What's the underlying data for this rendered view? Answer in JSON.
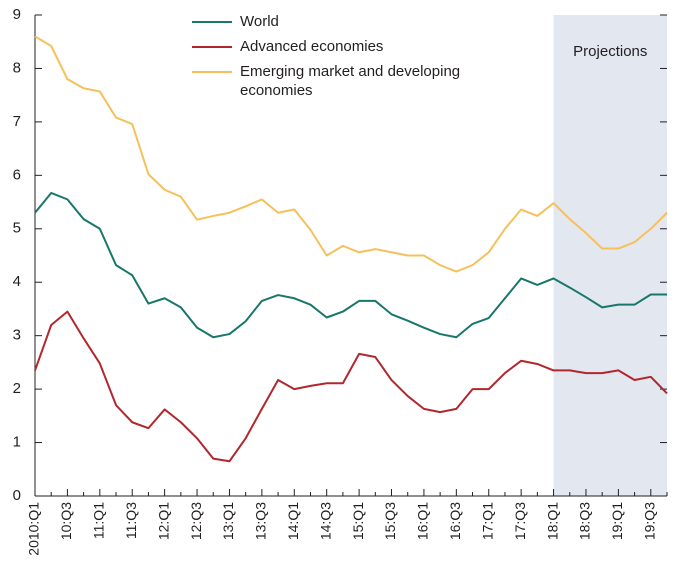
{
  "chart_data": {
    "type": "line",
    "annotation": "Projections",
    "projection_start": "18:Q1",
    "shade_color": "#e3e7f0",
    "categories": [
      "2010:Q1",
      null,
      "10:Q3",
      null,
      "11:Q1",
      null,
      "11:Q3",
      null,
      "12:Q1",
      null,
      "12:Q3",
      null,
      "13:Q1",
      null,
      "13:Q3",
      null,
      "14:Q1",
      null,
      "14:Q3",
      null,
      "15:Q1",
      null,
      "15:Q3",
      null,
      "16:Q1",
      null,
      "16:Q3",
      null,
      "17:Q1",
      null,
      "17:Q3",
      null,
      "18:Q1",
      null,
      "18:Q3",
      null,
      "19:Q1",
      null,
      "19:Q3",
      null
    ],
    "series": [
      {
        "name": "World",
        "color": "#17776a",
        "values": [
          5.3,
          5.67,
          5.55,
          5.18,
          5.0,
          4.32,
          4.13,
          3.6,
          3.7,
          3.53,
          3.15,
          2.97,
          3.03,
          3.27,
          3.65,
          3.76,
          3.7,
          3.58,
          3.34,
          3.45,
          3.65,
          3.65,
          3.4,
          3.28,
          3.15,
          3.03,
          2.97,
          3.22,
          3.33,
          3.7,
          4.07,
          3.95,
          4.07,
          3.9,
          3.72,
          3.53,
          3.58,
          3.58,
          3.77,
          3.77
        ]
      },
      {
        "name": "Advanced economies",
        "color": "#b0282e",
        "values": [
          2.35,
          3.2,
          3.45,
          2.95,
          2.48,
          1.7,
          1.38,
          1.27,
          1.62,
          1.38,
          1.08,
          0.7,
          0.65,
          1.08,
          1.63,
          2.17,
          2.0,
          2.06,
          2.11,
          2.11,
          2.66,
          2.6,
          2.17,
          1.87,
          1.63,
          1.57,
          1.63,
          2.0,
          2.0,
          2.3,
          2.53,
          2.47,
          2.35,
          2.35,
          2.3,
          2.3,
          2.35,
          2.17,
          2.23,
          1.92
        ]
      },
      {
        "name": "Emerging market and developing economies",
        "color": "#f6c05b",
        "values": [
          8.6,
          8.42,
          7.8,
          7.63,
          7.57,
          7.08,
          6.96,
          6.02,
          5.73,
          5.6,
          5.17,
          5.24,
          5.3,
          5.42,
          5.55,
          5.3,
          5.36,
          4.98,
          4.5,
          4.68,
          4.56,
          4.62,
          4.56,
          4.5,
          4.5,
          4.32,
          4.2,
          4.32,
          4.56,
          5.0,
          5.36,
          5.24,
          5.48,
          5.18,
          4.92,
          4.63,
          4.63,
          4.75,
          5.0,
          5.3
        ]
      }
    ],
    "ylim": [
      0,
      9
    ],
    "yticks": [
      0,
      1,
      2,
      3,
      4,
      5,
      6,
      7,
      8,
      9
    ],
    "grid": false
  }
}
